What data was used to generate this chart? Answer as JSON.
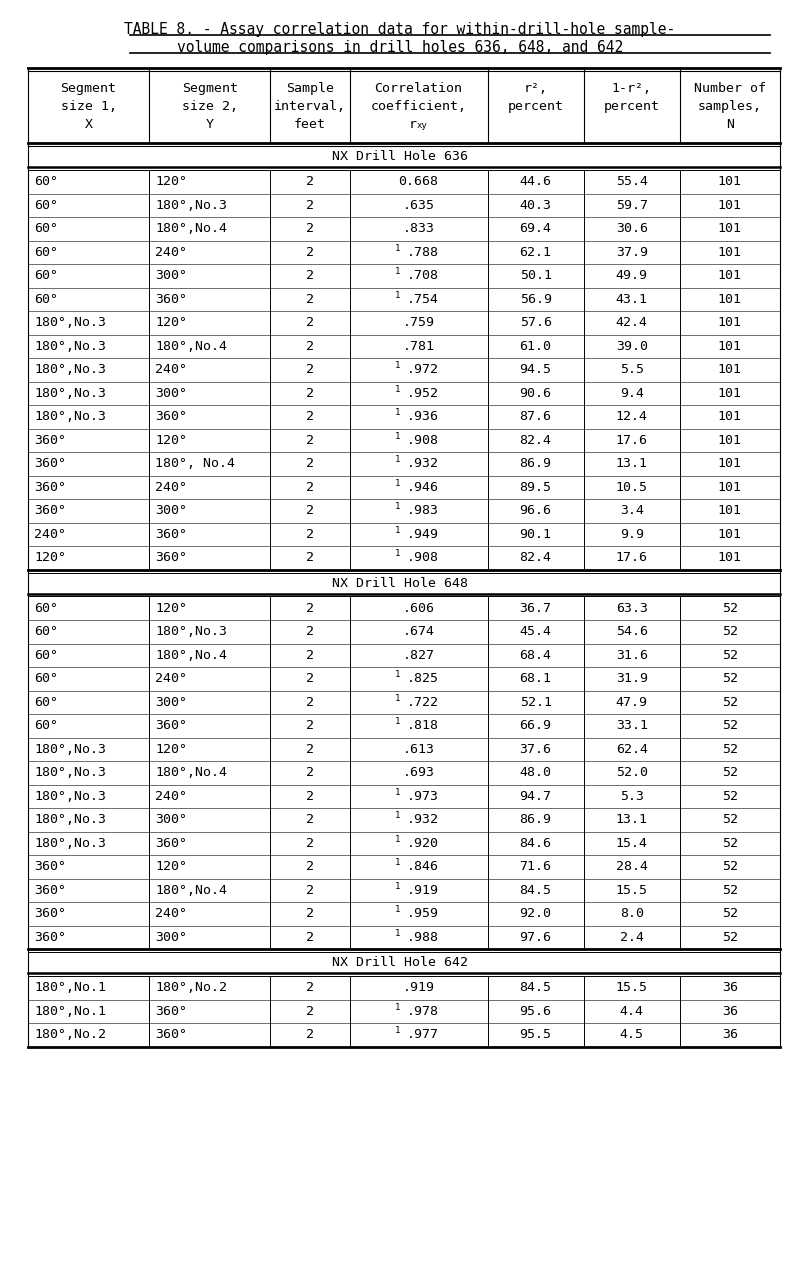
{
  "title_line1": "TABLE 8. - Assay correlation data for within-drill-hole sample-",
  "title_line2": "volume comparisons in drill holes 636, 648, and 642",
  "sections": [
    {
      "label": "NX Drill Hole 636",
      "rows": [
        [
          "60°",
          "120°",
          "2",
          "0",
          ".668",
          "44.6",
          "55.4",
          "101"
        ],
        [
          "60°",
          "180°,No.3",
          "2",
          "",
          ".635",
          "40.3",
          "59.7",
          "101"
        ],
        [
          "60°",
          "180°,No.4",
          "2",
          "",
          ".833",
          "69.4",
          "30.6",
          "101"
        ],
        [
          "60°",
          "240°",
          "2",
          "1",
          ".788",
          "62.1",
          "37.9",
          "101"
        ],
        [
          "60°",
          "300°",
          "2",
          "1",
          ".708",
          "50.1",
          "49.9",
          "101"
        ],
        [
          "60°",
          "360°",
          "2",
          "1",
          ".754",
          "56.9",
          "43.1",
          "101"
        ],
        [
          "180°,No.3",
          "120°",
          "2",
          "",
          ".759",
          "57.6",
          "42.4",
          "101"
        ],
        [
          "180°,No.3",
          "180°,No.4",
          "2",
          "",
          ".781",
          "61.0",
          "39.0",
          "101"
        ],
        [
          "180°,No.3",
          "240°",
          "2",
          "1",
          ".972",
          "94.5",
          "5.5",
          "101"
        ],
        [
          "180°,No.3",
          "300°",
          "2",
          "1",
          ".952",
          "90.6",
          "9.4",
          "101"
        ],
        [
          "180°,No.3",
          "360°",
          "2",
          "1",
          ".936",
          "87.6",
          "12.4",
          "101"
        ],
        [
          "360°",
          "120°",
          "2",
          "1",
          ".908",
          "82.4",
          "17.6",
          "101"
        ],
        [
          "360°",
          "180°, No.4",
          "2",
          "1",
          ".932",
          "86.9",
          "13.1",
          "101"
        ],
        [
          "360°",
          "240°",
          "2",
          "1",
          ".946",
          "89.5",
          "10.5",
          "101"
        ],
        [
          "360°",
          "300°",
          "2",
          "1",
          ".983",
          "96.6",
          "3.4",
          "101"
        ],
        [
          "240°",
          "360°",
          "2",
          "1",
          ".949",
          "90.1",
          "9.9",
          "101"
        ],
        [
          "120°",
          "360°",
          "2",
          "1",
          ".908",
          "82.4",
          "17.6",
          "101"
        ]
      ]
    },
    {
      "label": "NX Drill Hole 648",
      "rows": [
        [
          "60°",
          "120°",
          "2",
          "",
          ".606",
          "36.7",
          "63.3",
          "52"
        ],
        [
          "60°",
          "180°,No.3",
          "2",
          "",
          ".674",
          "45.4",
          "54.6",
          "52"
        ],
        [
          "60°",
          "180°,No.4",
          "2",
          "",
          ".827",
          "68.4",
          "31.6",
          "52"
        ],
        [
          "60°",
          "240°",
          "2",
          "1",
          ".825",
          "68.1",
          "31.9",
          "52"
        ],
        [
          "60°",
          "300°",
          "2",
          "1",
          ".722",
          "52.1",
          "47.9",
          "52"
        ],
        [
          "60°",
          "360°",
          "2",
          "1",
          ".818",
          "66.9",
          "33.1",
          "52"
        ],
        [
          "180°,No.3",
          "120°",
          "2",
          "",
          ".613",
          "37.6",
          "62.4",
          "52"
        ],
        [
          "180°,No.3",
          "180°,No.4",
          "2",
          "",
          ".693",
          "48.0",
          "52.0",
          "52"
        ],
        [
          "180°,No.3",
          "240°",
          "2",
          "1",
          ".973",
          "94.7",
          "5.3",
          "52"
        ],
        [
          "180°,No.3",
          "300°",
          "2",
          "1",
          ".932",
          "86.9",
          "13.1",
          "52"
        ],
        [
          "180°,No.3",
          "360°",
          "2",
          "1",
          ".920",
          "84.6",
          "15.4",
          "52"
        ],
        [
          "360°",
          "120°",
          "2",
          "1",
          ".846",
          "71.6",
          "28.4",
          "52"
        ],
        [
          "360°",
          "180°,No.4",
          "2",
          "1",
          ".919",
          "84.5",
          "15.5",
          "52"
        ],
        [
          "360°",
          "240°",
          "2",
          "1",
          ".959",
          "92.0",
          "8.0",
          "52"
        ],
        [
          "360°",
          "300°",
          "2",
          "1",
          ".988",
          "97.6",
          "2.4",
          "52"
        ]
      ]
    },
    {
      "label": "NX Drill Hole 642",
      "rows": [
        [
          "180°,No.1",
          "180°,No.2",
          "2",
          "",
          ".919",
          "84.5",
          "15.5",
          "36"
        ],
        [
          "180°,No.1",
          "360°",
          "2",
          "1",
          ".978",
          "95.6",
          "4.4",
          "36"
        ],
        [
          "180°,No.2",
          "360°",
          "2",
          "1",
          ".977",
          "95.5",
          "4.5",
          "36"
        ]
      ]
    }
  ],
  "background_color": "#ffffff",
  "text_color": "#000000"
}
